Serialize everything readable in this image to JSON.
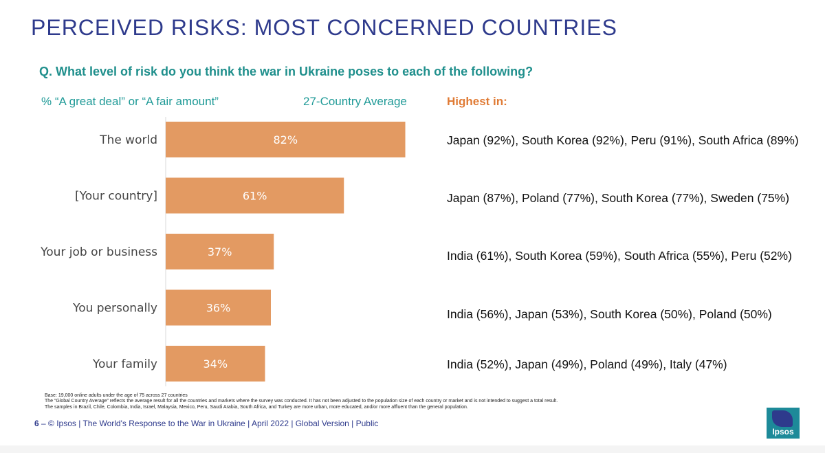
{
  "title": "PERCEIVED RISKS: MOST CONCERNED COUNTRIES",
  "question": "Q. What level of risk do you think the war in Ukraine poses to each of the following?",
  "subtitle_left": "% “A great deal” or “A fair amount”",
  "subtitle_avg": "27-Country Average",
  "highest_header": "Highest in:",
  "chart_data": {
    "type": "bar",
    "orientation": "horizontal",
    "categories": [
      "The world",
      "[Your country]",
      "Your job or business",
      "You personally",
      "Your family"
    ],
    "values": [
      82,
      61,
      37,
      36,
      34
    ],
    "labels": [
      "82%",
      "61%",
      "37%",
      "36%",
      "34%"
    ],
    "xlim": [
      0,
      100
    ],
    "bar_color": "#e39a62",
    "grid": false
  },
  "highest_in": [
    "Japan (92%), South Korea (92%), Peru (91%), South Africa (89%)",
    "Japan (87%), Poland (77%), South Korea (77%), Sweden (75%)",
    "India (61%), South Korea (59%), South Africa (55%), Peru (52%)",
    "India (56%), Japan (53%), South Korea (50%), Poland (50%)",
    "India (52%), Japan (49%), Poland (49%), Italy (47%)"
  ],
  "footnote": [
    "Base: 19,000 online adults under the age of 75 across 27 countries",
    "The “Global Country Average” reflects the average result for all the countries and markets where the survey was conducted. It has not been adjusted to the population size of each country or market and is not intended to suggest a total result.",
    "The samples in Brazil, Chile, Colombia, India, Israel, Malaysia, Mexico, Peru, Saudi Arabia,  South Africa, and Turkey are more urban, more educated, and/or more affluent than the general population."
  ],
  "footer": {
    "page": "6",
    "dash": " – ",
    "text": "© Ipsos | The World's Response to the War in Ukraine | April 2022 | Global Version | Public"
  },
  "logo_text": "Ipsos",
  "colors": {
    "title": "#2e3a8c",
    "teal": "#1f9a97",
    "orange": "#e07b35",
    "bar": "#e39a62"
  }
}
